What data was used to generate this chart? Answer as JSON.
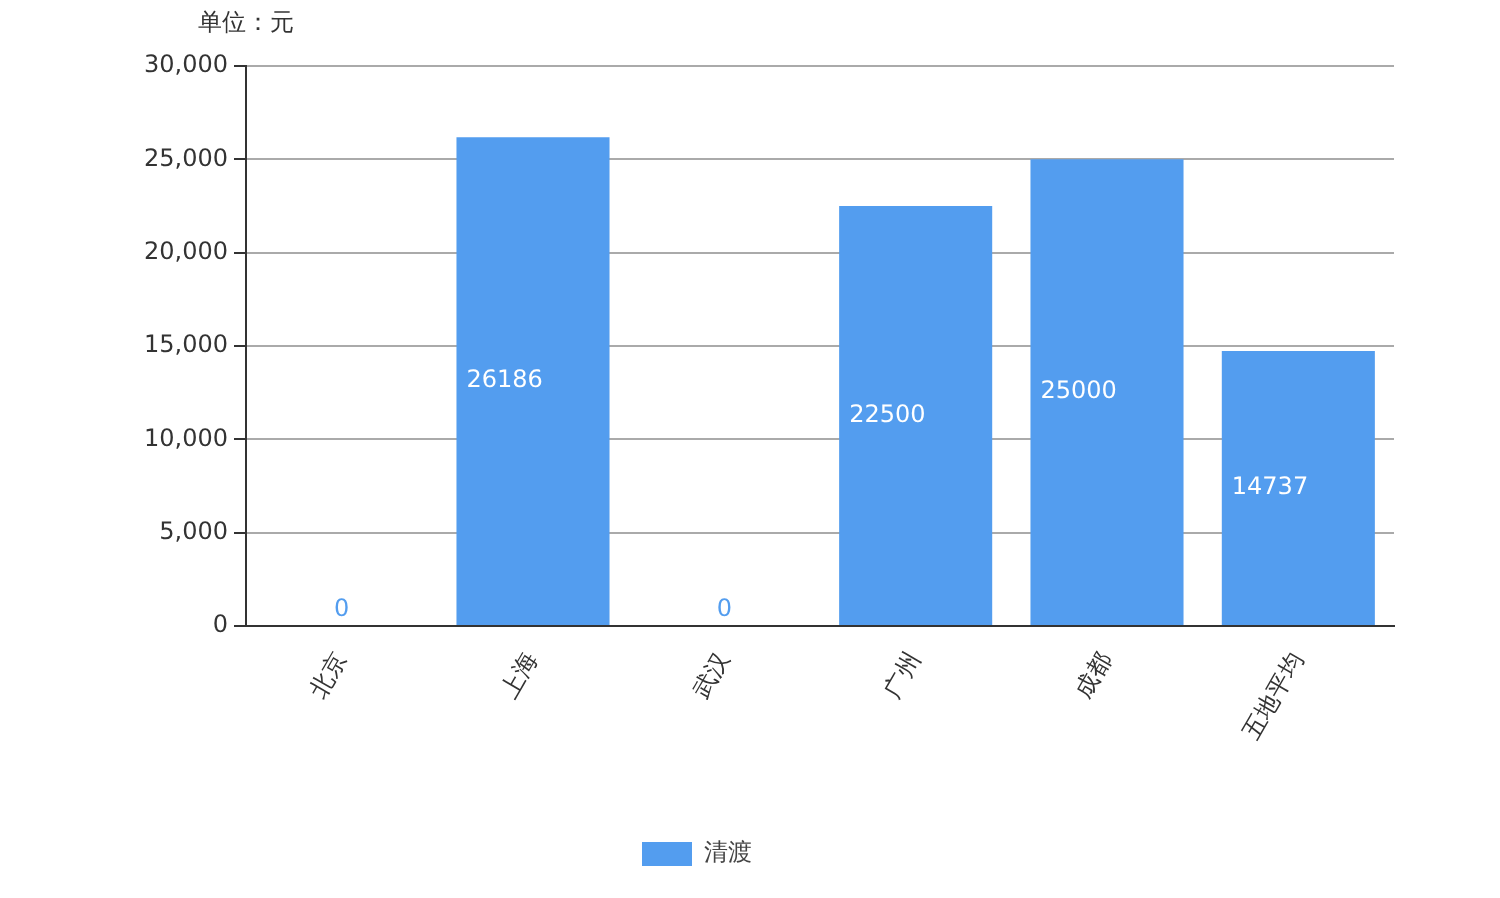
{
  "chart_data": {
    "type": "bar",
    "ylabel": "单位：元",
    "categories": [
      "北京",
      "上海",
      "武汉",
      "广州",
      "成都",
      "五地平均"
    ],
    "series": [
      {
        "name": "清渡",
        "color": "#539def",
        "values": [
          0,
          26186,
          0,
          22500,
          25000,
          14737
        ]
      }
    ],
    "ylim": [
      0,
      30000
    ],
    "yticks": [
      0,
      {
        "value": 5000,
        "label": "5,000"
      },
      {
        "value": 10000,
        "label": "10,000"
      },
      {
        "value": 15000,
        "label": "15,000"
      },
      {
        "value": 20000,
        "label": "20,000"
      },
      {
        "value": 25000,
        "label": "25,000"
      },
      {
        "value": 30000,
        "label": "30,000"
      }
    ],
    "grid": "y",
    "legend": "bottom",
    "data_labels": true
  }
}
